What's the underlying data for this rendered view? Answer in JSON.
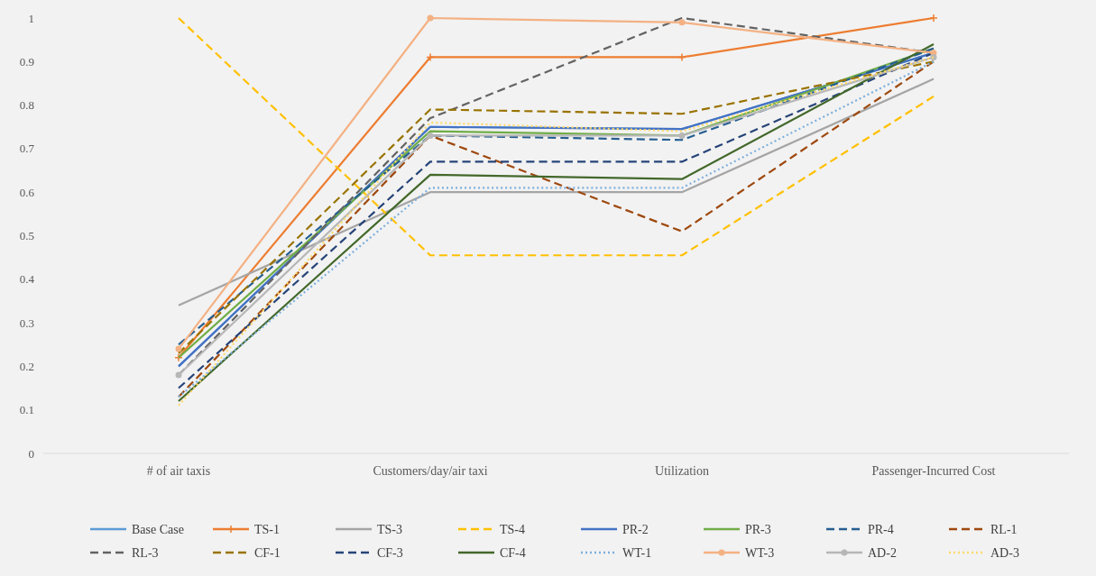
{
  "chart_data": {
    "type": "line",
    "categories": [
      "# of air taxis",
      "Customers/day/air taxi",
      "Utilization",
      "Passenger-Incurred Cost"
    ],
    "ylim": [
      0,
      1
    ],
    "yticks": [
      0,
      0.1,
      0.2,
      0.3,
      0.4,
      0.5,
      0.6,
      0.7,
      0.8,
      0.9,
      1
    ],
    "grid": false,
    "legend": "bottom",
    "series": [
      {
        "name": "Base Case",
        "color": "#5b9bd5",
        "line_style": "solid",
        "marker": "none",
        "values": [
          0.2,
          0.75,
          0.745,
          0.92
        ]
      },
      {
        "name": "TS-1",
        "color": "#ed7d31",
        "line_style": "solid",
        "marker": "cross",
        "values": [
          0.22,
          0.91,
          0.91,
          1.0
        ]
      },
      {
        "name": "TS-3",
        "color": "#a5a5a5",
        "line_style": "solid",
        "marker": "none",
        "values": [
          0.34,
          0.6,
          0.6,
          0.86
        ]
      },
      {
        "name": "TS-4",
        "color": "#ffc000",
        "line_style": "dashed",
        "marker": "none",
        "values": [
          1.0,
          0.455,
          0.455,
          0.82
        ]
      },
      {
        "name": "PR-2",
        "color": "#4472c4",
        "line_style": "solid",
        "marker": "none",
        "values": [
          0.2,
          0.75,
          0.745,
          0.92
        ]
      },
      {
        "name": "PR-3",
        "color": "#70ad47",
        "line_style": "solid",
        "marker": "none",
        "values": [
          0.22,
          0.74,
          0.73,
          0.93
        ]
      },
      {
        "name": "PR-4",
        "color": "#255e91",
        "line_style": "dashed",
        "marker": "none",
        "values": [
          0.25,
          0.73,
          0.72,
          0.93
        ]
      },
      {
        "name": "RL-1",
        "color": "#9e480e",
        "line_style": "dashed",
        "marker": "none",
        "values": [
          0.13,
          0.73,
          0.51,
          0.9
        ]
      },
      {
        "name": "RL-3",
        "color": "#636363",
        "line_style": "dashed",
        "marker": "none",
        "values": [
          0.18,
          0.77,
          1.0,
          0.92
        ]
      },
      {
        "name": "CF-1",
        "color": "#997300",
        "line_style": "dashed",
        "marker": "none",
        "values": [
          0.23,
          0.79,
          0.78,
          0.9
        ]
      },
      {
        "name": "CF-3",
        "color": "#264478",
        "line_style": "dashed",
        "marker": "none",
        "values": [
          0.15,
          0.67,
          0.67,
          0.92
        ]
      },
      {
        "name": "CF-4",
        "color": "#43682b",
        "line_style": "solid",
        "marker": "none",
        "values": [
          0.12,
          0.64,
          0.63,
          0.94
        ]
      },
      {
        "name": "WT-1",
        "color": "#7cafdd",
        "line_style": "dotted",
        "marker": "none",
        "values": [
          0.13,
          0.61,
          0.61,
          0.9
        ]
      },
      {
        "name": "WT-3",
        "color": "#f4b183",
        "line_style": "solid",
        "marker": "circle",
        "values": [
          0.24,
          1.0,
          0.99,
          0.92
        ]
      },
      {
        "name": "AD-2",
        "color": "#b7b7b7",
        "line_style": "solid",
        "marker": "circle",
        "values": [
          0.18,
          0.73,
          0.73,
          0.91
        ]
      },
      {
        "name": "AD-3",
        "color": "#ffd966",
        "line_style": "dotted",
        "marker": "none",
        "values": [
          0.11,
          0.76,
          0.74,
          0.91
        ]
      }
    ]
  }
}
